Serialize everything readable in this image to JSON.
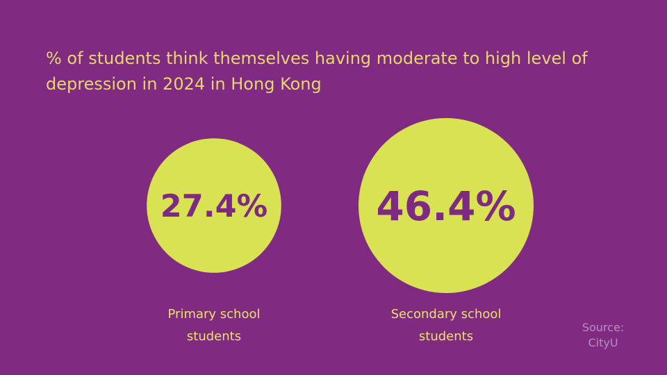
{
  "colors": {
    "background": "#802A82",
    "accent": "#D9E252",
    "title_text": "#E6D76E",
    "label_text": "#EDE06C",
    "value_text": "#7E2A82",
    "source_text": "#B98FC0"
  },
  "chart_data": {
    "type": "bubble",
    "title_lines": [
      "% of students think themselves having moderate to high level of",
      "depression in 2024 in Hong Kong"
    ],
    "categories": [
      {
        "label_lines": [
          "Primary school",
          "students"
        ],
        "value": 27.4,
        "value_label": "27.4%"
      },
      {
        "label_lines": [
          "Secondary school",
          "students"
        ],
        "value": 46.4,
        "value_label": "46.4%"
      }
    ],
    "unit": "%"
  },
  "source": {
    "lines": [
      "Source:",
      "CityU"
    ]
  }
}
